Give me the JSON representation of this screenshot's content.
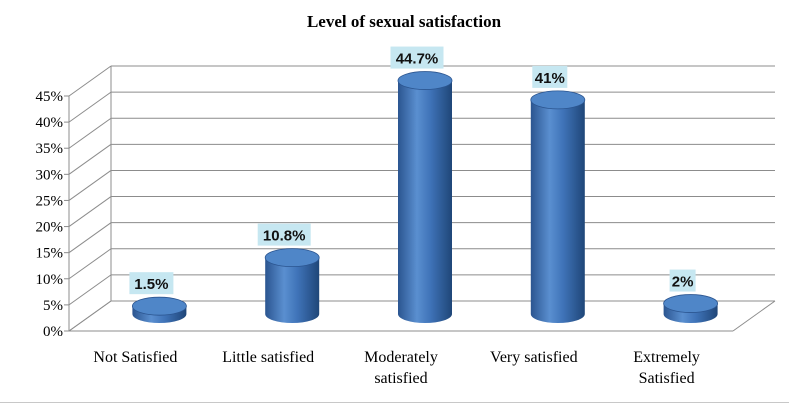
{
  "chart_data": {
    "type": "bar",
    "title": "Level of sexual satisfaction",
    "categories": [
      [
        "Not Satisfied"
      ],
      [
        "Little satisfied"
      ],
      [
        "Moderately",
        "satisfied"
      ],
      [
        "Very satisfied"
      ],
      [
        "Extremely",
        "Satisfied"
      ]
    ],
    "values": [
      1.5,
      10.8,
      44.7,
      41,
      2
    ],
    "data_labels": [
      "1.5%",
      "10.8%",
      "44.7%",
      "41%",
      "2%"
    ],
    "y_ticks": [
      "0%",
      "5%",
      "10%",
      "15%",
      "20%",
      "25%",
      "30%",
      "35%",
      "40%",
      "45%"
    ],
    "ylim": [
      0,
      45
    ],
    "xlabel": "",
    "ylabel": "",
    "grid": true,
    "colors": {
      "bar_side": "#3a6fb4",
      "bar_top": "#4f86c8",
      "label_bg": "#c6e7f1",
      "grid": "#8c8c8c"
    }
  }
}
